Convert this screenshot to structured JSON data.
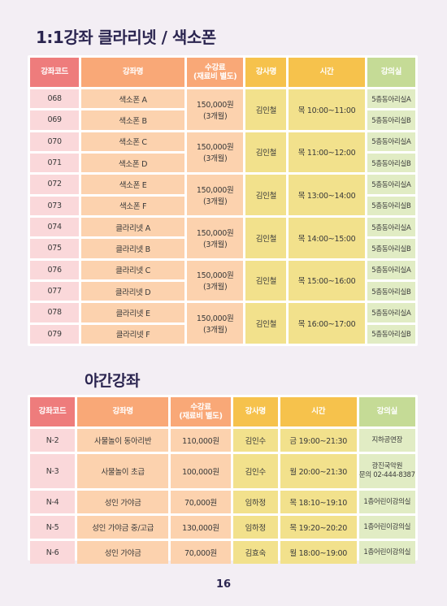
{
  "section1": {
    "title": "1:1강좌 클라리넷 / 색소폰",
    "headers": {
      "code": "강좌코드",
      "name": "강좌명",
      "fee_line1": "수강료",
      "fee_line2": "(재료비 별도)",
      "teacher": "강사명",
      "time": "시간",
      "room": "강의실"
    },
    "groups": [
      {
        "rows": [
          {
            "code": "068",
            "name": "색소폰 A",
            "room": "5층동아리실A"
          },
          {
            "code": "069",
            "name": "색소폰 B",
            "room": "5층동아리실B"
          }
        ],
        "fee": "150,000원",
        "fee_sub": "(3개월)",
        "teacher": "김인철",
        "time": "목 10:00~11:00"
      },
      {
        "rows": [
          {
            "code": "070",
            "name": "색소폰 C",
            "room": "5층동아리실A"
          },
          {
            "code": "071",
            "name": "색소폰 D",
            "room": "5층동아리실B"
          }
        ],
        "fee": "150,000원",
        "fee_sub": "(3개월)",
        "teacher": "김인철",
        "time": "목 11:00~12:00"
      },
      {
        "rows": [
          {
            "code": "072",
            "name": "색소폰 E",
            "room": "5층동아리실A"
          },
          {
            "code": "073",
            "name": "색소폰 F",
            "room": "5층동아리실B"
          }
        ],
        "fee": "150,000원",
        "fee_sub": "(3개월)",
        "teacher": "김인철",
        "time": "목 13:00~14:00"
      },
      {
        "rows": [
          {
            "code": "074",
            "name": "클라리넷 A",
            "room": "5층동아리실A"
          },
          {
            "code": "075",
            "name": "클라리넷 B",
            "room": "5층동아리실B"
          }
        ],
        "fee": "150,000원",
        "fee_sub": "(3개월)",
        "teacher": "김인철",
        "time": "목 14:00~15:00"
      },
      {
        "rows": [
          {
            "code": "076",
            "name": "클라리넷 C",
            "room": "5층동아리실A"
          },
          {
            "code": "077",
            "name": "클라리넷 D",
            "room": "5층동아리실B"
          }
        ],
        "fee": "150,000원",
        "fee_sub": "(3개월)",
        "teacher": "김인철",
        "time": "목 15:00~16:00"
      },
      {
        "rows": [
          {
            "code": "078",
            "name": "클라리넷 E",
            "room": "5층동아리실A"
          },
          {
            "code": "079",
            "name": "클라리넷 F",
            "room": "5층동아리실B"
          }
        ],
        "fee": "150,000원",
        "fee_sub": "(3개월)",
        "teacher": "김인철",
        "time": "목 16:00~17:00"
      }
    ]
  },
  "section2": {
    "title": "야간강좌",
    "headers": {
      "code": "강좌코드",
      "name": "강좌명",
      "fee_line1": "수강료",
      "fee_line2": "(재료비 별도)",
      "teacher": "강사명",
      "time": "시간",
      "room": "강의실"
    },
    "rows": [
      {
        "code": "N-2",
        "name": "사물놀이 동아리반",
        "fee": "110,000원",
        "teacher": "김인수",
        "time": "금 19:00~21:30",
        "room": "지하공연장"
      },
      {
        "code": "N-3",
        "name": "사물놀이 초급",
        "fee": "100,000원",
        "teacher": "김인수",
        "time": "월 20:00~21:30",
        "room": "광진국악원\n문의 02-444-8387"
      },
      {
        "code": "N-4",
        "name": "성인 가야금",
        "fee": "70,000원",
        "teacher": "임하정",
        "time": "목 18:10~19:10",
        "room": "1층어린이강의실"
      },
      {
        "code": "N-5",
        "name": "성인 가야금 중/고급",
        "fee": "130,000원",
        "teacher": "임하정",
        "time": "목 19:20~20:20",
        "room": "1층어린이강의실"
      },
      {
        "code": "N-6",
        "name": "성인 가야금",
        "fee": "70,000원",
        "teacher": "김효숙",
        "time": "월 18:00~19:00",
        "room": "1층어린이강의실"
      }
    ]
  },
  "page_number": "16"
}
